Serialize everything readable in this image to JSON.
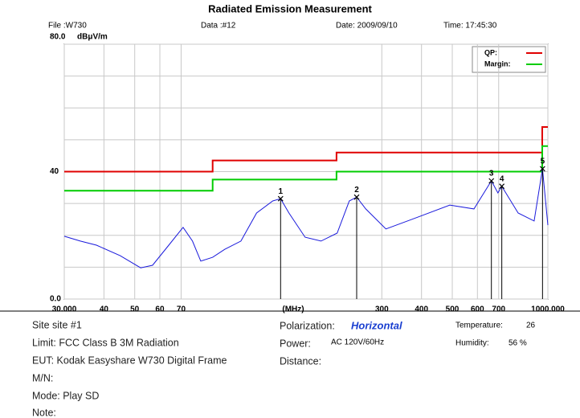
{
  "header": {
    "file": "File :W730",
    "data": "Data :#12",
    "date": "Date: 2009/09/10",
    "time": "Time: 17:45:30"
  },
  "chart_data": {
    "type": "line",
    "title": "Radiated Emission Measurement",
    "ylabel": "dBμV/m",
    "xlabel": "(MHz)",
    "xscale": "log",
    "grid": true,
    "xlim": [
      30,
      1000
    ],
    "ylim": [
      0,
      80
    ],
    "xticks": [
      {
        "value": 30,
        "label": "30.000"
      },
      40,
      50,
      60,
      70,
      300,
      400,
      500,
      600,
      700,
      {
        "value": 1000,
        "label": "1000.000"
      }
    ],
    "yticks": [
      {
        "value": 0,
        "label": "0.0"
      },
      40,
      {
        "value": 80,
        "label": "80.0"
      }
    ],
    "ygrid": [
      10,
      20,
      30,
      50,
      60,
      70
    ],
    "legend": "top-right",
    "series": [
      {
        "name": "QP:",
        "color": "#e00000",
        "x": [
          30,
          88,
          88,
          216,
          216,
          960,
          960,
          1000
        ],
        "values": [
          40,
          40,
          43.5,
          43.5,
          46,
          46,
          54,
          54
        ]
      },
      {
        "name": "Margin:",
        "color": "#00cc00",
        "x": [
          30,
          88,
          88,
          216,
          216,
          960,
          960,
          1000
        ],
        "values": [
          34,
          34,
          37.5,
          37.5,
          40,
          40,
          48,
          48
        ]
      },
      {
        "color": "#1a1adc",
        "x": [
          30,
          33.7,
          37.9,
          45,
          52.2,
          56.9,
          64,
          71,
          76,
          80.7,
          88,
          96,
          108,
          121,
          136,
          144,
          153,
          172,
          193,
          217,
          237,
          250,
          267,
          309,
          389,
          491,
          585,
          664,
          696,
          716,
          806,
          905,
          962,
          1000
        ],
        "values": [
          19.7,
          18.2,
          16.9,
          13.6,
          9.8,
          10.6,
          16.9,
          22.5,
          18.2,
          11.9,
          13.1,
          15.6,
          18.2,
          27,
          30.8,
          31.5,
          27,
          19.4,
          18.2,
          20.7,
          30.8,
          32,
          28.3,
          22,
          25.7,
          29.5,
          28.3,
          37.1,
          33.3,
          35.4,
          27,
          24.5,
          40.9,
          23.2
        ]
      }
    ],
    "markers": [
      {
        "label": "1",
        "x": 144,
        "value": 31.5
      },
      {
        "label": "2",
        "x": 250,
        "value": 32
      },
      {
        "label": "3",
        "x": 664,
        "value": 37.1
      },
      {
        "label": "4",
        "x": 716,
        "value": 35.4
      },
      {
        "label": "5",
        "x": 962,
        "value": 40.9
      }
    ]
  },
  "info": {
    "site": "Site site #1",
    "limit": "Limit: FCC Class B 3M Radiation",
    "eut": "EUT: Kodak Easyshare W730 Digital Frame",
    "mn": "M/N:",
    "mode": "Mode: Play SD",
    "note": "Note:",
    "polarization_label": "Polarization:",
    "polarization": "Horizontal",
    "power_label": "Power:",
    "power": "AC 120V/60Hz",
    "distance": "Distance:",
    "temperature_label": "Temperature:",
    "temperature": "26",
    "humidity_label": "Humidity:",
    "humidity": "56 %"
  }
}
